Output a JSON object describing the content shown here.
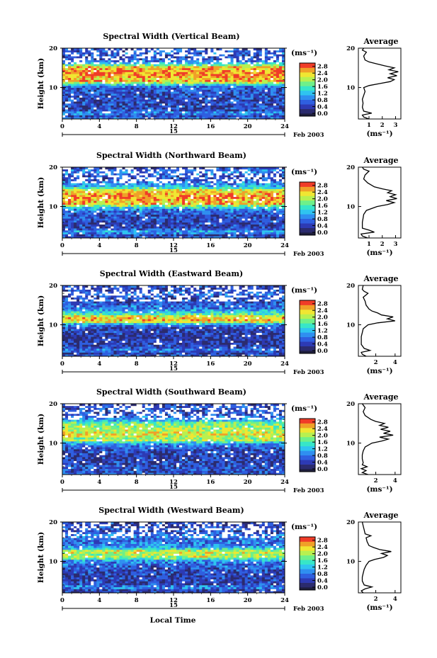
{
  "figure": {
    "footer_label": "Local Time",
    "colorbar_unit": "(ms⁻¹)",
    "colorbar_ticks": [
      "0.0",
      "0.4",
      "0.8",
      "1.2",
      "1.6",
      "2.0",
      "2.4",
      "2.8"
    ],
    "date_label": "Feb 2003",
    "day_label": "15",
    "ylabel": "Height (km)",
    "avg_title": "Average",
    "avg_xlabel": "(ms⁻¹)"
  },
  "colors": {
    "scale": [
      "#2b2b6e",
      "#2d3ab4",
      "#2f5fe0",
      "#2f8ff0",
      "#2fc4f0",
      "#37e6c8",
      "#6ef08a",
      "#b8f050",
      "#f0e632",
      "#f0a028",
      "#f03c28"
    ]
  },
  "chart_data": [
    {
      "type": "heatmap",
      "title": "Spectral Width (Vertical Beam)",
      "xlabel": "",
      "x_ticks": [
        0,
        4,
        8,
        12,
        16,
        20,
        24
      ],
      "xlim": [
        0,
        24
      ],
      "ylim": [
        2,
        20
      ],
      "y_ticks": [
        10,
        20
      ],
      "clim": [
        0,
        3.0
      ],
      "average": {
        "title": "Average",
        "x_ticks": [
          1,
          2,
          3
        ],
        "xlim": [
          0.2,
          3.4
        ],
        "profile": [
          [
            2,
            1.0
          ],
          [
            2.5,
            0.6
          ],
          [
            3,
            0.5
          ],
          [
            3.5,
            1.2
          ],
          [
            4,
            0.6
          ],
          [
            5,
            0.5
          ],
          [
            6,
            0.55
          ],
          [
            7,
            0.5
          ],
          [
            8,
            0.6
          ],
          [
            9,
            0.7
          ],
          [
            10,
            0.6
          ],
          [
            10.5,
            1.0
          ],
          [
            11,
            1.8
          ],
          [
            11.5,
            2.6
          ],
          [
            12,
            2.9
          ],
          [
            12.5,
            2.4
          ],
          [
            13,
            3.1
          ],
          [
            13.5,
            2.6
          ],
          [
            14,
            3.2
          ],
          [
            14.5,
            2.5
          ],
          [
            15,
            2.9
          ],
          [
            15.5,
            2.2
          ],
          [
            16,
            1.6
          ],
          [
            16.5,
            1.0
          ],
          [
            17,
            0.7
          ],
          [
            18,
            0.6
          ],
          [
            19,
            0.8
          ],
          [
            19.5,
            0.5
          ],
          [
            20,
            0.6
          ]
        ]
      }
    },
    {
      "type": "heatmap",
      "title": "Spectral Width (Northward Beam)",
      "xlabel": "",
      "x_ticks": [
        0,
        4,
        8,
        12,
        16,
        20,
        24
      ],
      "xlim": [
        0,
        24
      ],
      "ylim": [
        2,
        20
      ],
      "y_ticks": [
        10,
        20
      ],
      "clim": [
        0,
        3.0
      ],
      "average": {
        "title": "Average",
        "x_ticks": [
          1,
          2,
          3
        ],
        "xlim": [
          0.2,
          3.4
        ],
        "profile": [
          [
            2,
            0.9
          ],
          [
            2.5,
            0.5
          ],
          [
            3,
            0.4
          ],
          [
            3.5,
            1.4
          ],
          [
            4,
            1.0
          ],
          [
            4.5,
            0.5
          ],
          [
            5,
            0.5
          ],
          [
            6,
            0.5
          ],
          [
            7,
            0.55
          ],
          [
            8,
            0.6
          ],
          [
            9,
            0.8
          ],
          [
            10,
            1.6
          ],
          [
            10.5,
            2.4
          ],
          [
            11,
            2.9
          ],
          [
            11.5,
            2.3
          ],
          [
            12,
            3.1
          ],
          [
            12.5,
            2.6
          ],
          [
            13,
            3.0
          ],
          [
            13.5,
            2.4
          ],
          [
            14,
            2.7
          ],
          [
            14.5,
            2.0
          ],
          [
            15,
            1.4
          ],
          [
            16,
            0.9
          ],
          [
            17,
            0.6
          ],
          [
            18,
            0.7
          ],
          [
            19,
            1.0
          ],
          [
            19.5,
            0.6
          ],
          [
            20,
            0.5
          ]
        ]
      }
    },
    {
      "type": "heatmap",
      "title": "Spectral Width (Eastward Beam)",
      "xlabel": "",
      "x_ticks": [
        0,
        4,
        8,
        12,
        16,
        20,
        24
      ],
      "xlim": [
        0,
        24
      ],
      "ylim": [
        2,
        20
      ],
      "y_ticks": [
        10,
        20
      ],
      "clim": [
        0,
        3.0
      ],
      "average": {
        "title": "Average",
        "x_ticks": [
          2,
          4
        ],
        "xlim": [
          0.2,
          4.6
        ],
        "profile": [
          [
            2,
            1.0
          ],
          [
            2.5,
            0.6
          ],
          [
            3,
            0.5
          ],
          [
            3.5,
            1.4
          ],
          [
            4,
            0.8
          ],
          [
            5,
            0.5
          ],
          [
            6,
            0.5
          ],
          [
            7,
            0.5
          ],
          [
            8,
            0.6
          ],
          [
            9,
            0.7
          ],
          [
            10,
            1.2
          ],
          [
            10.5,
            2.2
          ],
          [
            11,
            4.0
          ],
          [
            11.5,
            3.2
          ],
          [
            12,
            3.8
          ],
          [
            12.5,
            2.6
          ],
          [
            13,
            2.2
          ],
          [
            13.5,
            1.6
          ],
          [
            14,
            1.3
          ],
          [
            15,
            1.0
          ],
          [
            16,
            0.9
          ],
          [
            17,
            0.7
          ],
          [
            18,
            1.2
          ],
          [
            18.5,
            0.8
          ],
          [
            19,
            0.6
          ],
          [
            20,
            0.7
          ]
        ]
      }
    },
    {
      "type": "heatmap",
      "title": "Spectral Width (Southward Beam)",
      "xlabel": "",
      "x_ticks": [
        0,
        4,
        8,
        12,
        16,
        20,
        24
      ],
      "xlim": [
        0,
        24
      ],
      "ylim": [
        2,
        20
      ],
      "y_ticks": [
        10,
        20
      ],
      "clim": [
        0,
        3.0
      ],
      "average": {
        "title": "Average",
        "x_ticks": [
          2,
          4
        ],
        "xlim": [
          0.2,
          4.6
        ],
        "profile": [
          [
            2,
            1.2
          ],
          [
            2.5,
            0.6
          ],
          [
            3,
            1.0
          ],
          [
            3.5,
            0.5
          ],
          [
            4,
            1.1
          ],
          [
            4.5,
            0.6
          ],
          [
            5,
            0.7
          ],
          [
            6,
            0.6
          ],
          [
            7,
            0.6
          ],
          [
            8,
            0.7
          ],
          [
            9,
            0.9
          ],
          [
            10,
            1.6
          ],
          [
            10.5,
            2.6
          ],
          [
            11,
            3.3
          ],
          [
            11.5,
            2.4
          ],
          [
            12,
            3.8
          ],
          [
            12.5,
            2.8
          ],
          [
            13,
            3.5
          ],
          [
            13.5,
            2.5
          ],
          [
            14,
            3.3
          ],
          [
            14.5,
            2.4
          ],
          [
            15,
            2.9
          ],
          [
            15.5,
            2.0
          ],
          [
            16,
            1.5
          ],
          [
            17,
            0.9
          ],
          [
            18,
            0.7
          ],
          [
            19,
            0.9
          ],
          [
            20,
            0.6
          ]
        ]
      }
    },
    {
      "type": "heatmap",
      "title": "Spectral Width (Westward Beam)",
      "xlabel": "Local Time",
      "x_ticks": [
        0,
        4,
        8,
        12,
        16,
        20,
        24
      ],
      "xlim": [
        0,
        24
      ],
      "ylim": [
        2,
        20
      ],
      "y_ticks": [
        10,
        20
      ],
      "clim": [
        0,
        3.0
      ],
      "average": {
        "title": "Average",
        "x_ticks": [
          2,
          4
        ],
        "xlim": [
          0.2,
          4.6
        ],
        "profile": [
          [
            2,
            0.7
          ],
          [
            2.5,
            0.5
          ],
          [
            3,
            0.9
          ],
          [
            3.5,
            1.6
          ],
          [
            4,
            0.8
          ],
          [
            5,
            0.6
          ],
          [
            6,
            0.6
          ],
          [
            7,
            0.7
          ],
          [
            8,
            0.8
          ],
          [
            9,
            1.0
          ],
          [
            10,
            1.3
          ],
          [
            10.5,
            1.9
          ],
          [
            11,
            2.8
          ],
          [
            11.5,
            3.2
          ],
          [
            12,
            2.6
          ],
          [
            12.5,
            3.6
          ],
          [
            13,
            2.4
          ],
          [
            13.5,
            1.8
          ],
          [
            14,
            1.3
          ],
          [
            15,
            1.1
          ],
          [
            16,
            1.0
          ],
          [
            16.5,
            1.5
          ],
          [
            17,
            0.9
          ],
          [
            18,
            0.8
          ],
          [
            19,
            0.7
          ],
          [
            20,
            0.6
          ]
        ]
      }
    }
  ]
}
